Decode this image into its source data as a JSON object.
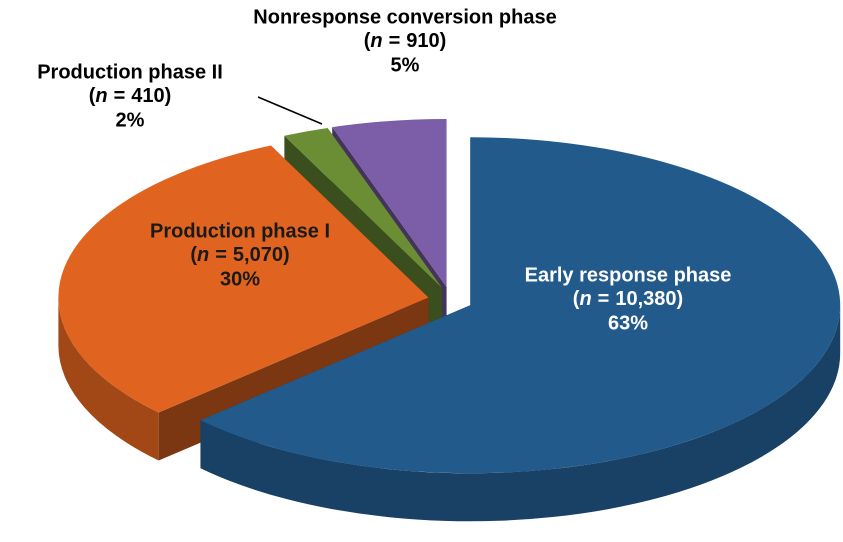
{
  "chart_data": {
    "type": "pie3d",
    "categories": [
      "Early response phase",
      "Production phase I",
      "Production phase II",
      "Nonresponse conversion phase"
    ],
    "values": [
      63,
      30,
      2,
      5
    ],
    "value_labels": [
      "63%",
      "30%",
      "2%",
      "5%"
    ],
    "counts": [
      10380,
      5070,
      410,
      910
    ],
    "count_labels": [
      "10,380",
      "5,070",
      "410",
      "910"
    ],
    "count_notation": {
      "open": "(",
      "variable": "n",
      "equals": "=",
      "close": ")"
    },
    "colors": [
      "#235a8c",
      "#e0641f",
      "#6b8e34",
      "#7b5ea7"
    ],
    "label_colors": [
      "#ffffff",
      "#1a1a1a",
      "#000000",
      "#000000"
    ],
    "start_angle": -90,
    "direction": "clockwise",
    "exploded": true
  }
}
